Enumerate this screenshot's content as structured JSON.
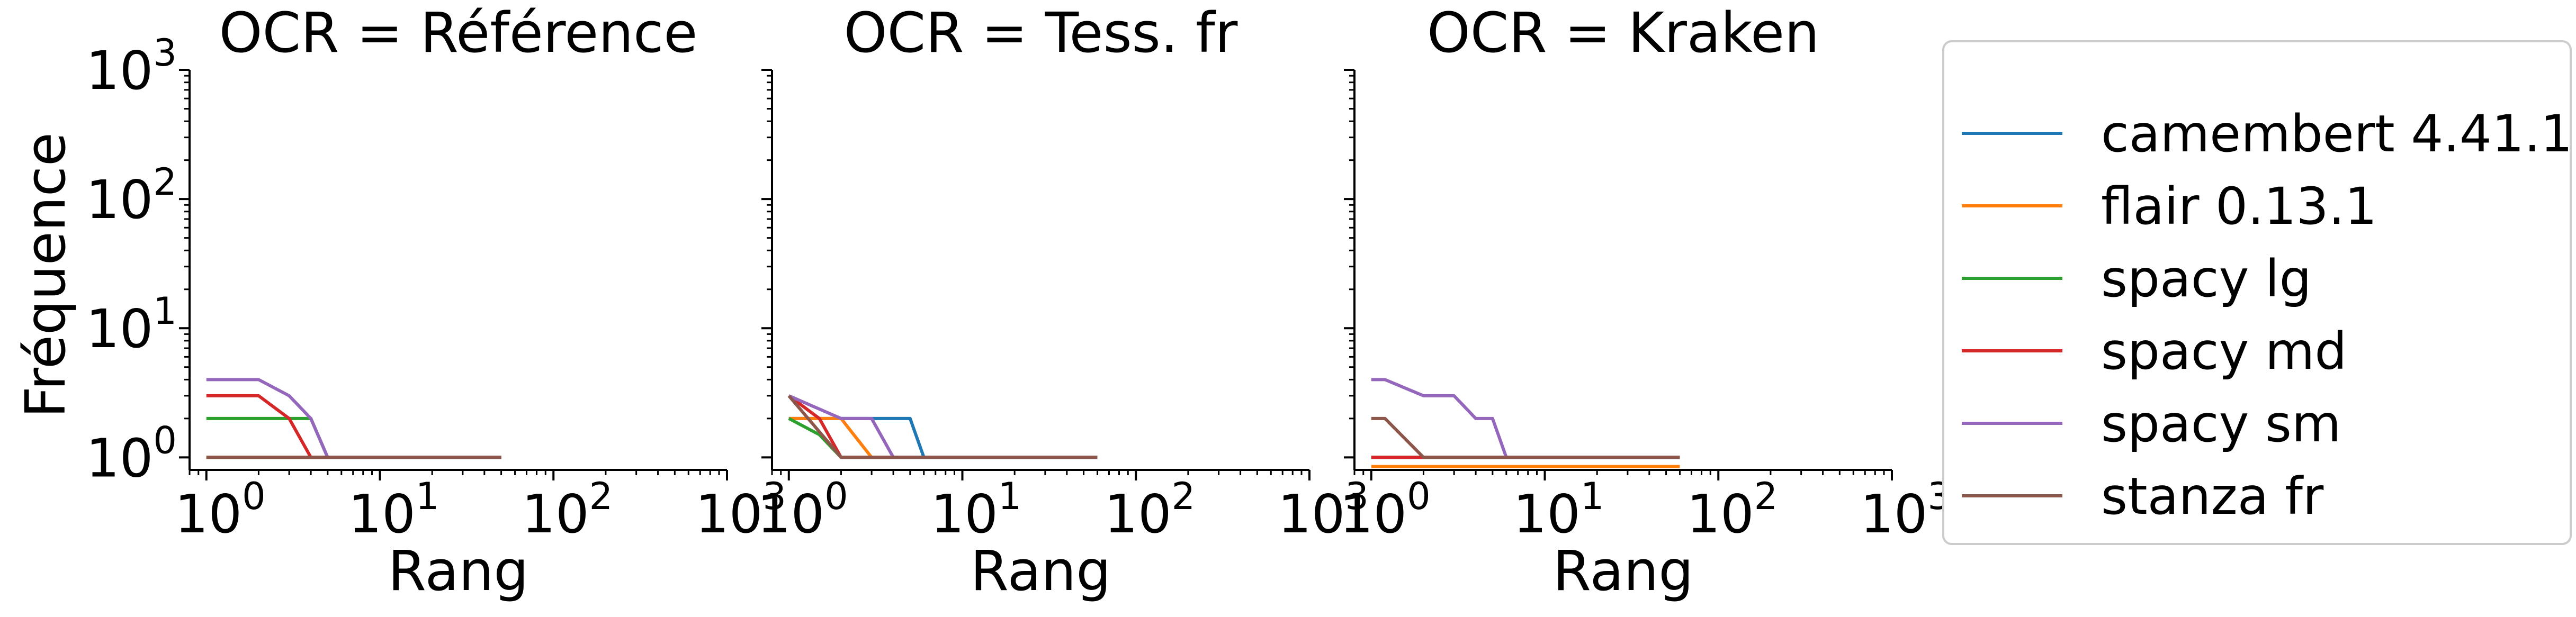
{
  "figure": {
    "ylabel": "Fréquence",
    "legend_placement": "right"
  },
  "chart_data": [
    {
      "type": "line",
      "title": "OCR = Référence",
      "xlabel": "Rang",
      "ylabel": "Fréquence",
      "xscale": "log",
      "yscale": "log",
      "xlim": [
        0.8,
        1000
      ],
      "ylim": [
        0.8,
        1000
      ],
      "grid": false,
      "x_ticks": [
        {
          "base": "10",
          "exp": "0"
        },
        {
          "base": "10",
          "exp": "1"
        },
        {
          "base": "10",
          "exp": "2"
        },
        {
          "base": "10",
          "exp": "3"
        }
      ],
      "y_ticks": [
        {
          "base": "10",
          "exp": "0"
        },
        {
          "base": "10",
          "exp": "1"
        },
        {
          "base": "10",
          "exp": "2"
        },
        {
          "base": "10",
          "exp": "3"
        }
      ],
      "series": [
        {
          "name": "camembert 4.41.1",
          "color": "#1f77b4",
          "x": [
            1,
            50
          ],
          "y": [
            1,
            1
          ]
        },
        {
          "name": "flair 0.13.1",
          "color": "#ff7f0e",
          "x": [
            1,
            50
          ],
          "y": [
            1,
            1
          ]
        },
        {
          "name": "spacy lg",
          "color": "#2ca02c",
          "x": [
            1,
            2,
            3,
            4,
            5,
            50
          ],
          "y": [
            2,
            2,
            2,
            2,
            1,
            1
          ]
        },
        {
          "name": "spacy md",
          "color": "#d62728",
          "x": [
            1,
            2,
            3,
            4,
            50
          ],
          "y": [
            3,
            3,
            2,
            1,
            1
          ]
        },
        {
          "name": "spacy sm",
          "color": "#9467bd",
          "x": [
            1,
            2,
            3,
            4,
            5,
            50
          ],
          "y": [
            4,
            4,
            3,
            2,
            1,
            1
          ]
        },
        {
          "name": "stanza fr",
          "color": "#8c564b",
          "x": [
            1,
            50
          ],
          "y": [
            1,
            1
          ]
        }
      ]
    },
    {
      "type": "line",
      "title": "OCR = Tess. fr",
      "xlabel": "Rang",
      "xscale": "log",
      "yscale": "log",
      "xlim": [
        0.8,
        1000
      ],
      "ylim": [
        0.8,
        1000
      ],
      "grid": false,
      "x_ticks": [
        {
          "base": "10",
          "exp": "0"
        },
        {
          "base": "10",
          "exp": "1"
        },
        {
          "base": "10",
          "exp": "2"
        },
        {
          "base": "10",
          "exp": "3"
        }
      ],
      "series": [
        {
          "name": "camembert 4.41.1",
          "color": "#1f77b4",
          "x": [
            1,
            5,
            6,
            60
          ],
          "y": [
            2,
            2,
            1,
            1
          ]
        },
        {
          "name": "flair 0.13.1",
          "color": "#ff7f0e",
          "x": [
            1,
            2,
            3,
            60
          ],
          "y": [
            2,
            2,
            1,
            1
          ]
        },
        {
          "name": "spacy lg",
          "color": "#2ca02c",
          "x": [
            1,
            1.5,
            2,
            60
          ],
          "y": [
            2,
            1.5,
            1,
            1
          ]
        },
        {
          "name": "spacy md",
          "color": "#d62728",
          "x": [
            1,
            1.5,
            2,
            60
          ],
          "y": [
            3,
            2,
            1,
            1
          ]
        },
        {
          "name": "spacy sm",
          "color": "#9467bd",
          "x": [
            1,
            2,
            3,
            4,
            60
          ],
          "y": [
            3,
            2,
            2,
            1,
            1
          ]
        },
        {
          "name": "stanza fr",
          "color": "#8c564b",
          "x": [
            1,
            2,
            60
          ],
          "y": [
            3,
            1,
            1
          ]
        }
      ]
    },
    {
      "type": "line",
      "title": "OCR = Kraken",
      "xlabel": "Rang",
      "xscale": "log",
      "yscale": "log",
      "xlim": [
        0.8,
        1000
      ],
      "ylim": [
        0.8,
        1000
      ],
      "grid": false,
      "x_ticks": [
        {
          "base": "10",
          "exp": "0"
        },
        {
          "base": "10",
          "exp": "1"
        },
        {
          "base": "10",
          "exp": "2"
        },
        {
          "base": "10",
          "exp": "3"
        }
      ],
      "series": [
        {
          "name": "camembert 4.41.1",
          "color": "#1f77b4",
          "x": [
            1,
            60
          ],
          "y": [
            1,
            1
          ]
        },
        {
          "name": "flair 0.13.1",
          "color": "#ff7f0e",
          "x": [
            1,
            60
          ],
          "y": [
            0.85,
            0.85
          ]
        },
        {
          "name": "spacy lg",
          "color": "#2ca02c",
          "x": [
            1,
            60
          ],
          "y": [
            1,
            1
          ]
        },
        {
          "name": "spacy md",
          "color": "#d62728",
          "x": [
            1,
            60
          ],
          "y": [
            1,
            1
          ]
        },
        {
          "name": "spacy sm",
          "color": "#9467bd",
          "x": [
            1,
            1.2,
            2,
            3,
            4,
            5,
            6,
            60
          ],
          "y": [
            4,
            4,
            3,
            3,
            2,
            2,
            1,
            1
          ]
        },
        {
          "name": "stanza fr",
          "color": "#8c564b",
          "x": [
            1,
            1.2,
            2,
            60
          ],
          "y": [
            2,
            2,
            1,
            1
          ]
        }
      ]
    }
  ]
}
